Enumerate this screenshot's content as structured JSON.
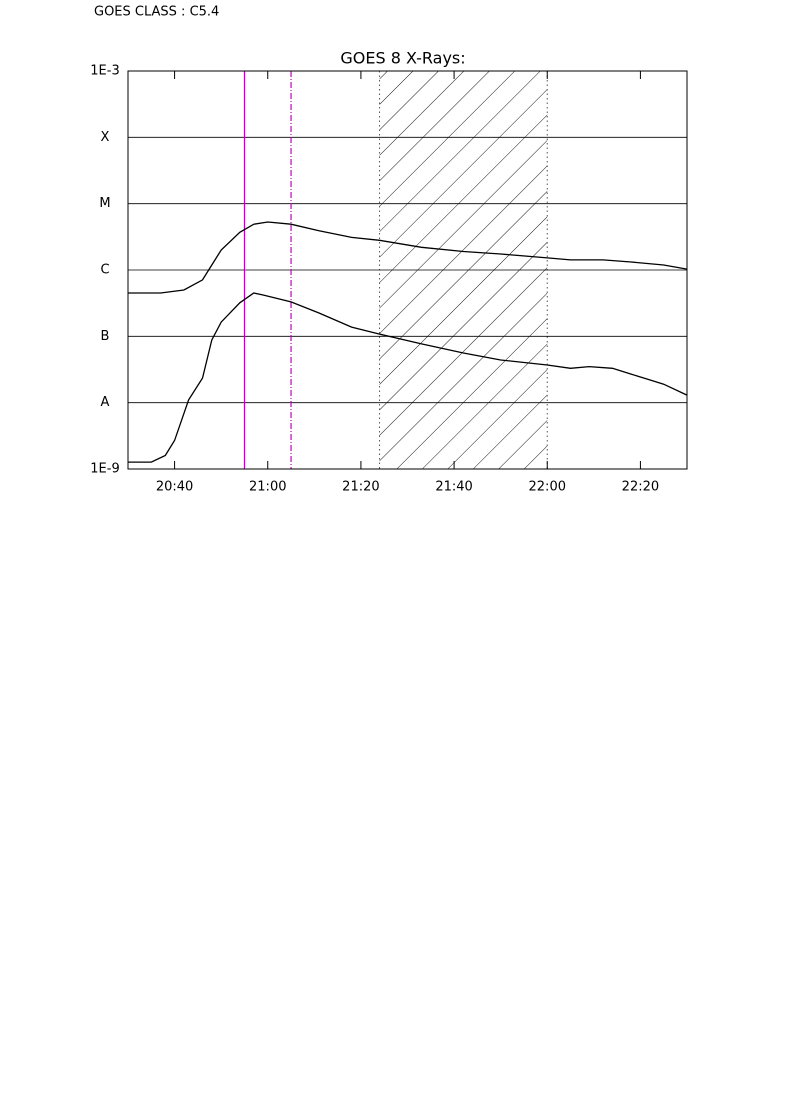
{
  "chart_data": {
    "type": "line",
    "header": "GOES CLASS : C5.4",
    "title": "GOES 8 X-Rays:",
    "log_scale": true,
    "grid": true,
    "xlim": [
      "20:30",
      "22:30"
    ],
    "xticks": [
      "20:40",
      "21:00",
      "21:20",
      "21:40",
      "22:00",
      "22:20"
    ],
    "ylim": [
      1e-09,
      0.001
    ],
    "yticks": [
      {
        "value": 1e-09,
        "label": "1E-9"
      },
      {
        "value": 1e-08,
        "label": "A"
      },
      {
        "value": 1e-07,
        "label": "B"
      },
      {
        "value": 1e-06,
        "label": "C"
      },
      {
        "value": 1e-05,
        "label": "M"
      },
      {
        "value": 0.0001,
        "label": "X"
      },
      {
        "value": 0.001,
        "label": "1E-3"
      }
    ],
    "series": [
      {
        "color": "#000000",
        "x": [
          "20:30",
          "20:37",
          "20:42",
          "20:46",
          "20:48",
          "20:50",
          "20:54",
          "20:57",
          "21:00",
          "21:05",
          "21:11",
          "21:18",
          "21:24",
          "21:33",
          "21:42",
          "21:50",
          "22:00",
          "22:05",
          "22:12",
          "22:18",
          "22:25",
          "22:30"
        ],
        "values": [
          4.5e-07,
          4.5e-07,
          5e-07,
          7.1e-07,
          1.19e-06,
          2e-06,
          3.7e-06,
          4.9e-06,
          5.3e-06,
          4.9e-06,
          3.9e-06,
          3.1e-06,
          2.8e-06,
          2.2e-06,
          1.9e-06,
          1.74e-06,
          1.52e-06,
          1.42e-06,
          1.42e-06,
          1.32e-06,
          1.19e-06,
          1.03e-06
        ]
      },
      {
        "color": "#000000",
        "x": [
          "20:30",
          "20:35",
          "20:38",
          "20:40",
          "20:43",
          "20:46",
          "20:48",
          "20:50",
          "20:54",
          "20:57",
          "20:59",
          "21:05",
          "21:11",
          "21:18",
          "21:24",
          "21:33",
          "21:42",
          "21:50",
          "22:00",
          "22:05",
          "22:09",
          "22:14",
          "22:18",
          "22:25",
          "22:30"
        ],
        "values": [
          1.27e-09,
          1.27e-09,
          1.6e-09,
          2.7e-09,
          1.1e-08,
          2.35e-08,
          8.8e-08,
          1.64e-07,
          3.2e-07,
          4.5e-07,
          4.2e-07,
          3.3e-07,
          2.25e-07,
          1.38e-07,
          1.08e-07,
          7.7e-08,
          5.6e-08,
          4.4e-08,
          3.7e-08,
          3.3e-08,
          3.5e-08,
          3.3e-08,
          2.7e-08,
          1.9e-08,
          1.3e-08
        ]
      }
    ],
    "markers": [
      {
        "x": "20:55",
        "color": "#c000c0",
        "style": "solid"
      },
      {
        "x": "21:05",
        "color": "#c000c0",
        "style": "dashdot"
      }
    ],
    "shaded_region": {
      "x": [
        "21:24",
        "22:00"
      ],
      "color": "#000000",
      "hatch": "diagonal"
    }
  }
}
